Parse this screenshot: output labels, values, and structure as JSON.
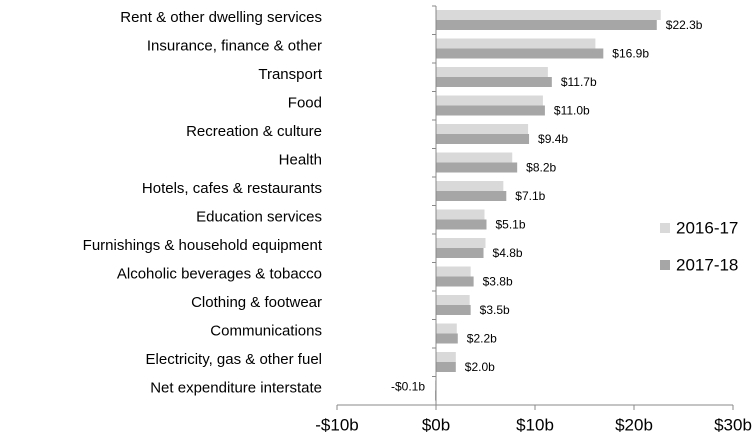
{
  "chart_data": {
    "type": "bar",
    "orientation": "horizontal",
    "categories": [
      "Rent & other dwelling services",
      "Insurance, finance & other",
      "Transport",
      "Food",
      "Recreation & culture",
      "Health",
      "Hotels, cafes & restaurants",
      "Education services",
      "Furnishings & household equipment",
      "Alcoholic beverages & tobacco",
      "Clothing & footwear",
      "Communications",
      "Electricity, gas & other fuel",
      "Net expenditure interstate"
    ],
    "series": [
      {
        "name": "2016-17",
        "color": "#d9d9d9",
        "values": [
          22.7,
          16.1,
          11.3,
          10.8,
          9.3,
          7.7,
          6.8,
          4.9,
          5.0,
          3.5,
          3.4,
          2.1,
          2.0,
          -0.1
        ]
      },
      {
        "name": "2017-18",
        "color": "#a6a6a6",
        "values": [
          22.3,
          16.9,
          11.7,
          11.0,
          9.4,
          8.2,
          7.1,
          5.1,
          4.8,
          3.8,
          3.5,
          2.2,
          2.0,
          -0.1
        ],
        "value_labels": [
          "$22.3b",
          "$16.9b",
          "$11.7b",
          "$11.0b",
          "$9.4b",
          "$8.2b",
          "$7.1b",
          "$5.1b",
          "$4.8b",
          "$3.8b",
          "$3.5b",
          "$2.2b",
          "$2.0b",
          "-$0.1b"
        ]
      }
    ],
    "xlim": [
      -10,
      30
    ],
    "xticks": [
      {
        "value": -10,
        "label": "-$10b"
      },
      {
        "value": 0,
        "label": "$0b"
      },
      {
        "value": 10,
        "label": "$10b"
      },
      {
        "value": 20,
        "label": "$20b"
      },
      {
        "value": 30,
        "label": "$30b"
      }
    ],
    "legend": "right",
    "grid": false
  }
}
